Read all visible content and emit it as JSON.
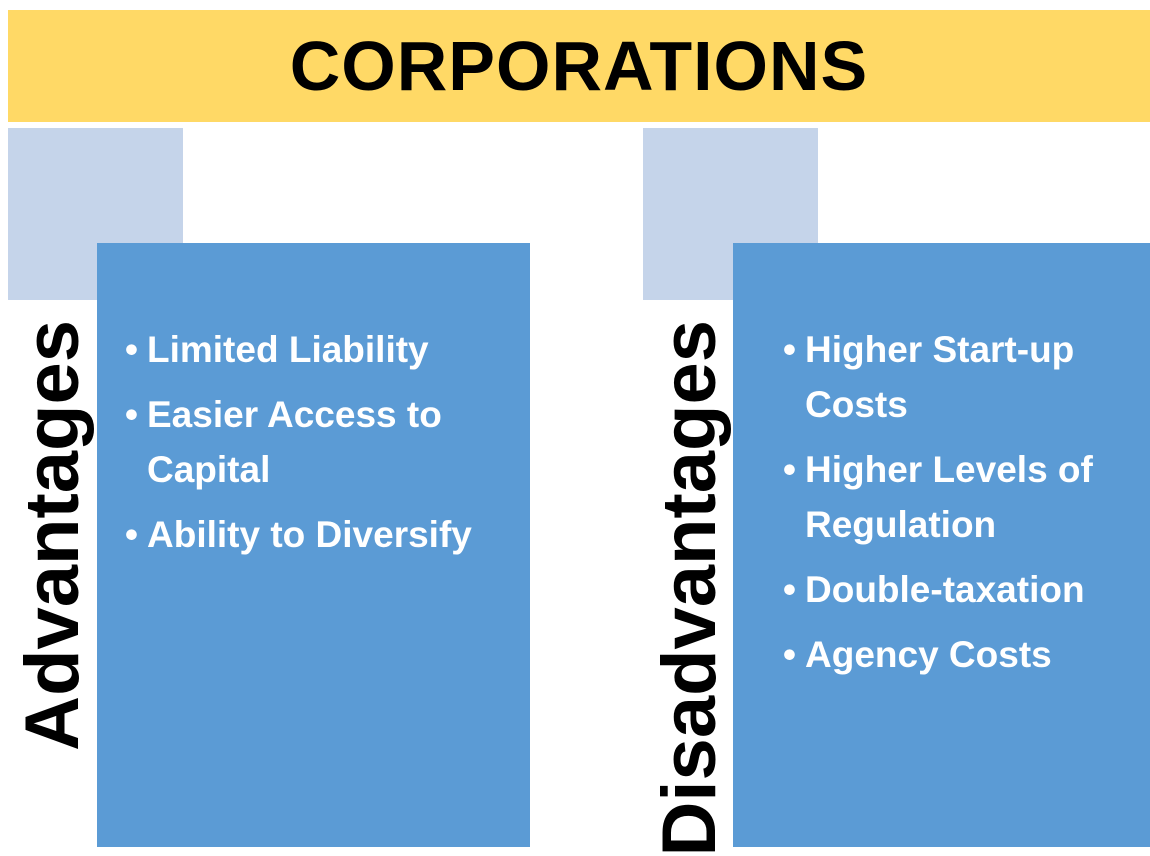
{
  "title": "CORPORATIONS",
  "advantages": {
    "heading": "Advantages",
    "items": [
      "Limited Liability",
      "Easier Access to Capital",
      "Ability to Diversify"
    ]
  },
  "disadvantages": {
    "heading": "Disadvantages",
    "items": [
      "Higher Start-up Costs",
      "Higher Levels of Regulation",
      "Double-taxation",
      "Agency Costs"
    ]
  }
}
